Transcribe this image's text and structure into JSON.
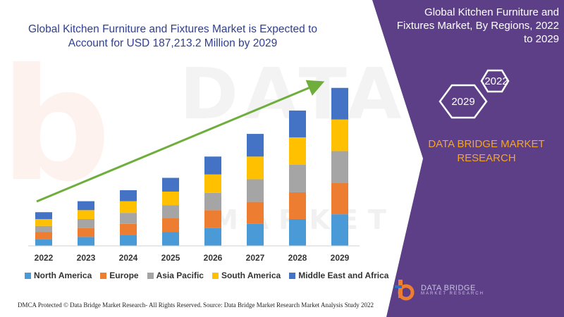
{
  "chart_title": "Global Kitchen Furniture and Fixtures Market is Expected to Account for USD 187,213.2 Million by 2029",
  "panel": {
    "title": "Global Kitchen Furniture and Fixtures Market, By Regions, 2022 to 2029",
    "hex_year_start": "2022",
    "hex_year_end": "2029",
    "company_name": "DATA BRIDGE MARKET RESEARCH",
    "logo_text": "DATA BRIDGE",
    "logo_subtext": "MARKET RESEARCH"
  },
  "footer": {
    "left": "DMCA Protected © Data Bridge Market Research- All Rights Reserved.",
    "right": "Source: Data Bridge Market Research Market Analysis Study 2022"
  },
  "watermark": {
    "line1": "DATA BRIDGE",
    "line2": "MARKET RESEARCH"
  },
  "colors": {
    "north_america": "#4a9ad8",
    "europe": "#ed7d31",
    "asia_pacific": "#a5a5a5",
    "south_america": "#ffc000",
    "middle_east_africa": "#4472c4",
    "panel": "#5c3f86",
    "arrow": "#6fae3c",
    "title": "#2e3f8f",
    "accent": "#f5a623"
  },
  "chart_data": {
    "type": "bar",
    "stacked": true,
    "categories": [
      "2022",
      "2023",
      "2024",
      "2025",
      "2026",
      "2027",
      "2028",
      "2029"
    ],
    "series": [
      {
        "name": "North America",
        "color": "#4a9ad8",
        "values": [
          10,
          13,
          16,
          20,
          26,
          32,
          39,
          46
        ]
      },
      {
        "name": "Europe",
        "color": "#ed7d31",
        "values": [
          10,
          13,
          16,
          20,
          26,
          32,
          39,
          46
        ]
      },
      {
        "name": "Asia Pacific",
        "color": "#a5a5a5",
        "values": [
          9,
          13,
          16,
          19,
          25,
          33,
          40,
          46
        ]
      },
      {
        "name": "South America",
        "color": "#ffc000",
        "values": [
          10,
          13,
          17,
          20,
          27,
          33,
          40,
          46
        ]
      },
      {
        "name": "Middle East and Africa",
        "color": "#4472c4",
        "values": [
          10,
          13,
          16,
          20,
          26,
          33,
          39,
          46
        ]
      }
    ],
    "title": "Global Kitchen Furniture and Fixtures Market is Expected to Account for USD 187,213.2 Million by 2029",
    "xlabel": "",
    "ylabel": "",
    "ylim": [
      0,
      240
    ],
    "grid": false,
    "legend": "bottom",
    "trend_arrow": true
  }
}
